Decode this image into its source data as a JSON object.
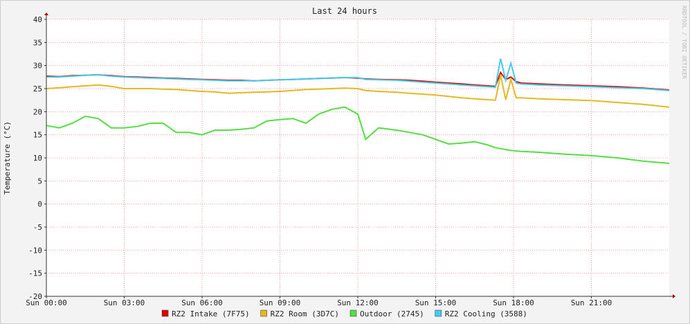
{
  "chart_data": {
    "type": "line",
    "title": "Last 24 hours",
    "y_label": "Temperature (°C)",
    "watermark": "RRDTOOL / TOBI OETIKER",
    "x": [
      0,
      0.5,
      1,
      1.5,
      2,
      2.5,
      3,
      3.5,
      4,
      4.5,
      5,
      5.5,
      6,
      6.5,
      7,
      7.5,
      8,
      8.5,
      9,
      9.5,
      10,
      10.5,
      11,
      11.5,
      12,
      12.3,
      12.8,
      13.5,
      14,
      14.5,
      15,
      15.5,
      16,
      16.5,
      17,
      17.3,
      17.5,
      17.7,
      17.9,
      18.1,
      18.3,
      19,
      20,
      21,
      22,
      23,
      24
    ],
    "xlim": [
      0,
      24
    ],
    "xticks": [
      {
        "value": 0,
        "label": "Sun 00:00"
      },
      {
        "value": 3,
        "label": "Sun 03:00"
      },
      {
        "value": 6,
        "label": "Sun 06:00"
      },
      {
        "value": 9,
        "label": "Sun 09:00"
      },
      {
        "value": 12,
        "label": "Sun 12:00"
      },
      {
        "value": 15,
        "label": "Sun 15:00"
      },
      {
        "value": 18,
        "label": "Sun 18:00"
      },
      {
        "value": 21,
        "label": "Sun 21:00"
      }
    ],
    "ylim": [
      -20,
      40
    ],
    "yticks": [
      -20,
      -15,
      -10,
      -5,
      0,
      5,
      10,
      15,
      20,
      25,
      30,
      35,
      40
    ],
    "grid": true,
    "series": [
      {
        "name": "RZ2 Intake (7F75)",
        "color": "#e00000",
        "values": [
          27.7,
          27.6,
          27.8,
          27.9,
          28,
          27.8,
          27.6,
          27.5,
          27.4,
          27.3,
          27.2,
          27.1,
          27,
          26.9,
          26.8,
          26.8,
          26.7,
          26.8,
          26.9,
          27,
          27.1,
          27.2,
          27.3,
          27.4,
          27.3,
          27.1,
          27,
          26.9,
          26.8,
          26.6,
          26.4,
          26.2,
          26,
          25.8,
          25.6,
          25.5,
          28.5,
          27,
          27.5,
          26.5,
          26.2,
          26,
          25.8,
          25.6,
          25.4,
          25.1,
          24.7
        ]
      },
      {
        "name": "RZ2 Room (3D7C)",
        "color": "#e6b820",
        "values": [
          25,
          25.2,
          25.4,
          25.6,
          25.8,
          25.5,
          25,
          25,
          25,
          24.9,
          24.8,
          24.6,
          24.4,
          24.3,
          24,
          24.1,
          24.2,
          24.3,
          24.4,
          24.6,
          24.8,
          24.9,
          25,
          25.1,
          25,
          24.6,
          24.4,
          24.2,
          24,
          23.8,
          23.6,
          23.3,
          23,
          22.8,
          22.6,
          22.5,
          28,
          22.6,
          27,
          23,
          23,
          22.8,
          22.6,
          22.4,
          22,
          21.6,
          21
        ]
      },
      {
        "name": "Outdoor (2745)",
        "color": "#55dd44",
        "values": [
          17,
          16.5,
          17.5,
          19,
          18.5,
          16.5,
          16.5,
          16.8,
          17.5,
          17.5,
          15.5,
          15.5,
          15,
          16,
          16,
          16.2,
          16.5,
          18,
          18.3,
          18.5,
          17.5,
          19.5,
          20.5,
          21,
          19.5,
          14,
          16.5,
          16,
          15.5,
          15,
          14,
          13,
          13.2,
          13.5,
          12.8,
          12.2,
          12,
          11.8,
          11.6,
          11.5,
          11.4,
          11.2,
          10.8,
          10.5,
          10,
          9.3,
          8.8
        ]
      },
      {
        "name": "RZ2 Cooling (3588)",
        "color": "#44ccee",
        "values": [
          27.5,
          27.5,
          27.7,
          27.9,
          28,
          27.7,
          27.5,
          27.4,
          27.3,
          27.2,
          27.1,
          27,
          26.9,
          26.8,
          26.7,
          26.7,
          26.7,
          26.8,
          26.9,
          27,
          27.1,
          27.2,
          27.3,
          27.4,
          27.4,
          27,
          26.9,
          26.8,
          26.6,
          26.4,
          26.2,
          26,
          25.8,
          25.6,
          25.4,
          25.3,
          31.5,
          26.8,
          30.5,
          26.2,
          26,
          25.8,
          25.6,
          25.4,
          25.2,
          25,
          24.6
        ]
      }
    ]
  }
}
